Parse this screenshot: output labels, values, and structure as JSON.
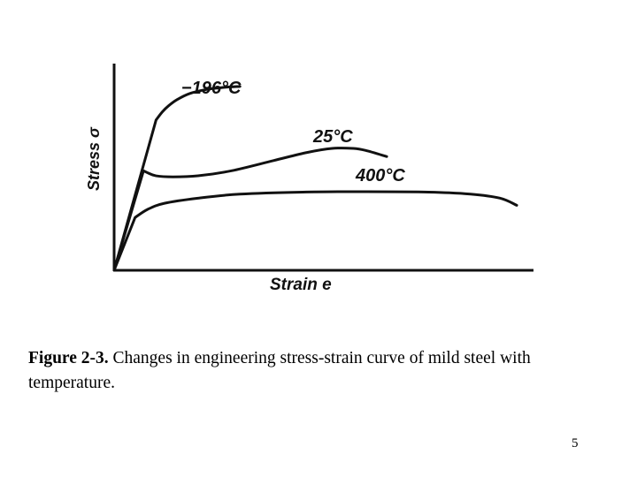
{
  "chart_data": {
    "type": "line",
    "title": "",
    "xlabel": "Strain e",
    "ylabel": "Stress σ",
    "xlim": [
      0,
      100
    ],
    "ylim": [
      0,
      100
    ],
    "grid": false,
    "series": [
      {
        "name": "−196°C",
        "x": [
          0,
          10,
          11.5,
          13,
          15,
          18,
          22,
          26,
          30
        ],
        "y": [
          0,
          74,
          78,
          81,
          84,
          87,
          89,
          90,
          90.5
        ]
      },
      {
        "name": "25°C",
        "x": [
          0,
          7,
          8,
          10,
          14,
          20,
          28,
          38,
          46,
          52,
          57,
          60,
          65
        ],
        "y": [
          0,
          49,
          48,
          46.5,
          46,
          46.5,
          49,
          54,
          58,
          60,
          60,
          59,
          56
        ]
      },
      {
        "name": "400°C",
        "x": [
          0,
          5,
          8,
          12,
          20,
          30,
          45,
          60,
          75,
          85,
          92,
          96
        ],
        "y": [
          0,
          26,
          30,
          33,
          35.5,
          37.5,
          38.5,
          38.7,
          38.5,
          37.5,
          35.5,
          32
        ]
      }
    ],
    "colors": {
      "line": "#111111",
      "axis": "#111111"
    }
  },
  "caption": {
    "lead": "Figure 2-3.",
    "text": "  Changes in engineering stress-strain curve of mild steel with temperature."
  },
  "page_number": "5"
}
